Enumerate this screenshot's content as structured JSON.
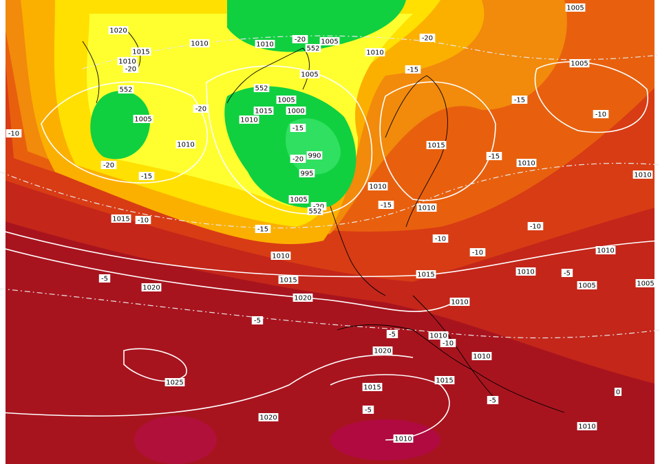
{
  "map": {
    "labels": [
      "1020",
      "1015",
      "1010",
      "1010",
      "-20",
      "552",
      "1005",
      "-10",
      "-20",
      "-15",
      "1010",
      "-20",
      "1010",
      "-20",
      "1005",
      "552",
      "1010",
      "-20",
      "1005",
      "1005",
      "-15",
      "1005",
      "552",
      "1005",
      "1015",
      "1000",
      "1010",
      "-15",
      "990",
      "-20",
      "995",
      "-15",
      "-10",
      "1015",
      "-15",
      "1010",
      "1010",
      "1005",
      "-20",
      "552",
      "-15",
      "1010",
      "1015",
      "-10",
      "-15",
      "-10",
      "1010",
      "-10",
      "-10",
      "1010",
      "1010",
      "-5",
      "1015",
      "1015",
      "1010",
      "-5",
      "1005",
      "1005",
      "1020",
      "1020",
      "1010",
      "-5",
      "-5",
      "1010",
      "-10",
      "1020",
      "1010",
      "1025",
      "1015",
      "1015",
      "-5",
      "0",
      "-5",
      "1020",
      "1010",
      "1010"
    ]
  }
}
